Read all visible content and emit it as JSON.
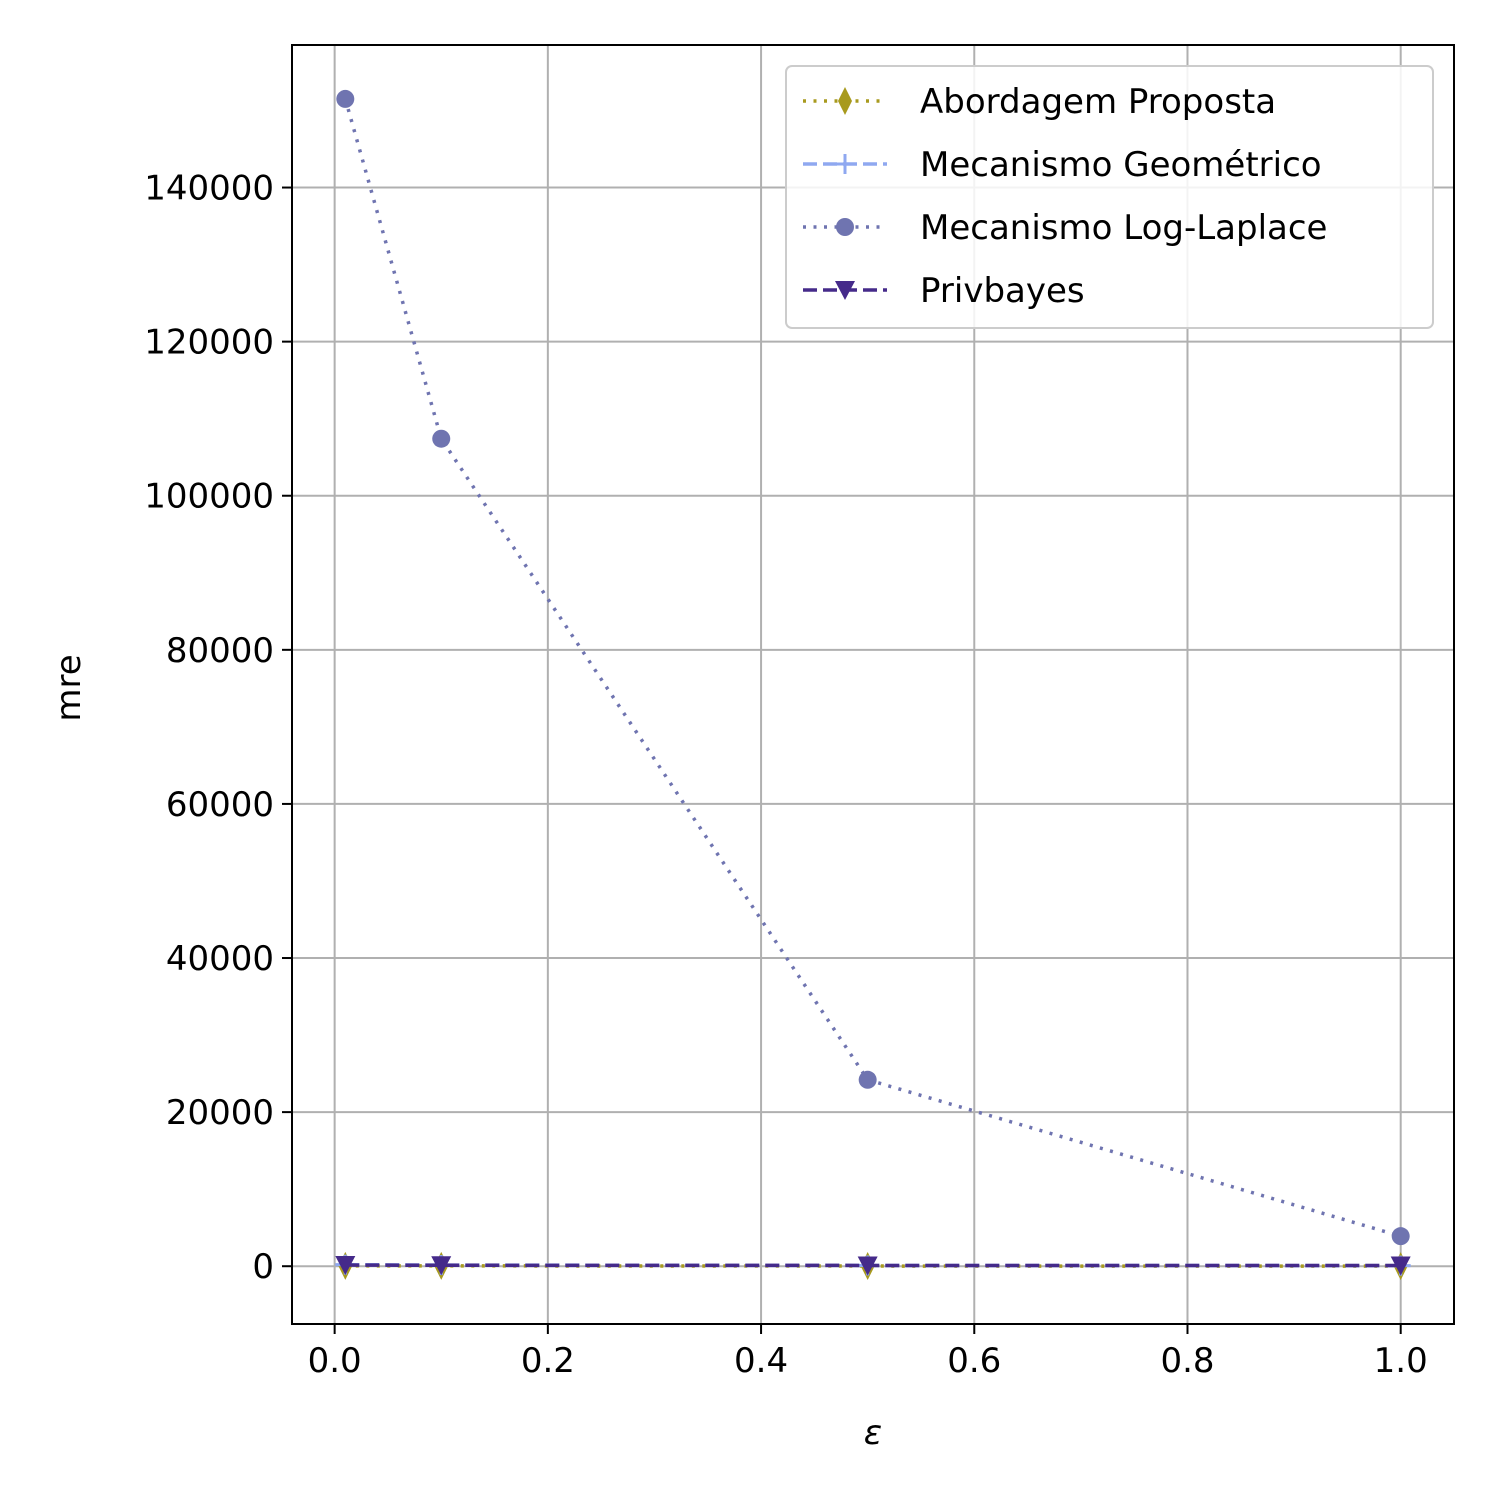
{
  "chart_data": {
    "type": "line",
    "xlabel": "ε",
    "ylabel": "mre",
    "xlim": [
      -0.04,
      1.05
    ],
    "ylim": [
      -7500,
      158500
    ],
    "xticks": [
      0.0,
      0.2,
      0.4,
      0.6,
      0.8,
      1.0
    ],
    "xtick_labels": [
      "0.0",
      "0.2",
      "0.4",
      "0.6",
      "0.8",
      "1.0"
    ],
    "yticks": [
      0,
      20000,
      40000,
      60000,
      80000,
      100000,
      120000,
      140000
    ],
    "ytick_labels": [
      "0",
      "20000",
      "40000",
      "60000",
      "80000",
      "100000",
      "120000",
      "140000"
    ],
    "grid": true,
    "legend_position": "top-right",
    "x": [
      0.01,
      0.1,
      0.5,
      1.0
    ],
    "series": [
      {
        "name": "Abordagem Proposta",
        "values": [
          50,
          40,
          20,
          10
        ],
        "color": "#a89a1e",
        "linestyle": "dotted",
        "marker": "thin-diamond"
      },
      {
        "name": "Mecanismo Geométrico",
        "values": [
          200,
          150,
          100,
          80
        ],
        "color": "#8fa8f0",
        "linestyle": "dashed",
        "marker": "plus"
      },
      {
        "name": "Mecanismo Log-Laplace",
        "values": [
          151500,
          107400,
          24200,
          3900
        ],
        "color": "#6f74b0",
        "linestyle": "dotted",
        "marker": "circle"
      },
      {
        "name": "Privbayes",
        "values": [
          150,
          120,
          100,
          90
        ],
        "color": "#452a8a",
        "linestyle": "dashed",
        "marker": "triangle-down"
      }
    ]
  }
}
